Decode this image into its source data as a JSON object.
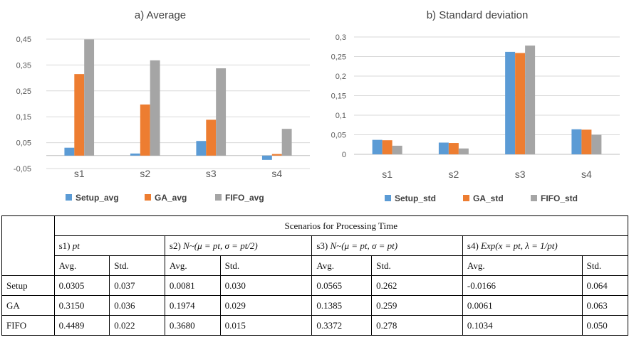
{
  "colors": {
    "setup": "#5b9bd5",
    "ga": "#ed7d31",
    "fifo": "#a5a5a5",
    "grid": "#d9d9d9"
  },
  "chart_data": [
    {
      "type": "bar",
      "title": "a) Average",
      "categories": [
        "s1",
        "s2",
        "s3",
        "s4"
      ],
      "series": [
        {
          "name": "Setup_avg",
          "values": [
            0.0305,
            0.0081,
            0.0565,
            -0.0166
          ]
        },
        {
          "name": "GA_avg",
          "values": [
            0.315,
            0.1974,
            0.1385,
            0.0061
          ]
        },
        {
          "name": "FIFO_avg",
          "values": [
            0.4489,
            0.368,
            0.3372,
            0.1034
          ]
        }
      ],
      "yticks": [
        "-0,05",
        "0,05",
        "0,15",
        "0,25",
        "0,35",
        "0,45"
      ],
      "ylim": [
        -0.05,
        0.45
      ],
      "grid": true,
      "legend": "bottom"
    },
    {
      "type": "bar",
      "title": "b) Standard deviation",
      "categories": [
        "s1",
        "s2",
        "s3",
        "s4"
      ],
      "series": [
        {
          "name": "Setup_std",
          "values": [
            0.037,
            0.03,
            0.262,
            0.064
          ]
        },
        {
          "name": "GA_std",
          "values": [
            0.036,
            0.029,
            0.259,
            0.063
          ]
        },
        {
          "name": "FIFO_std",
          "values": [
            0.022,
            0.015,
            0.278,
            0.05
          ]
        }
      ],
      "yticks": [
        "0",
        "0,05",
        "0,1",
        "0,15",
        "0,2",
        "0,25",
        "0,3"
      ],
      "ylim": [
        0,
        0.3
      ],
      "grid": true,
      "legend": "bottom"
    }
  ],
  "table": {
    "header": "Scenarios for Processing Time",
    "scenarios": [
      {
        "prefix": "s1) ",
        "formula": "pt"
      },
      {
        "prefix": "s2) ",
        "formula": "N~(μ = pt, σ = pt/2)"
      },
      {
        "prefix": "s3) ",
        "formula": "N~(μ = pt, σ = pt)"
      },
      {
        "prefix": "s4) ",
        "formula": "Exp(x = pt, λ = 1/pt)"
      }
    ],
    "subheaders": [
      "Avg.",
      "Std.",
      "Avg.",
      "Std.",
      "Avg.",
      "Std.",
      "Avg.",
      "Std."
    ],
    "rows": [
      {
        "label": "Setup",
        "cells": [
          "0.0305",
          "0.037",
          "0.0081",
          "0.030",
          "0.0565",
          "0.262",
          "-0.0166",
          "0.064"
        ]
      },
      {
        "label": "GA",
        "cells": [
          "0.3150",
          "0.036",
          "0.1974",
          "0.029",
          "0.1385",
          "0.259",
          "0.0061",
          "0.063"
        ]
      },
      {
        "label": "FIFO",
        "cells": [
          "0.4489",
          "0.022",
          "0.3680",
          "0.015",
          "0.3372",
          "0.278",
          "0.1034",
          "0.050"
        ]
      }
    ]
  }
}
